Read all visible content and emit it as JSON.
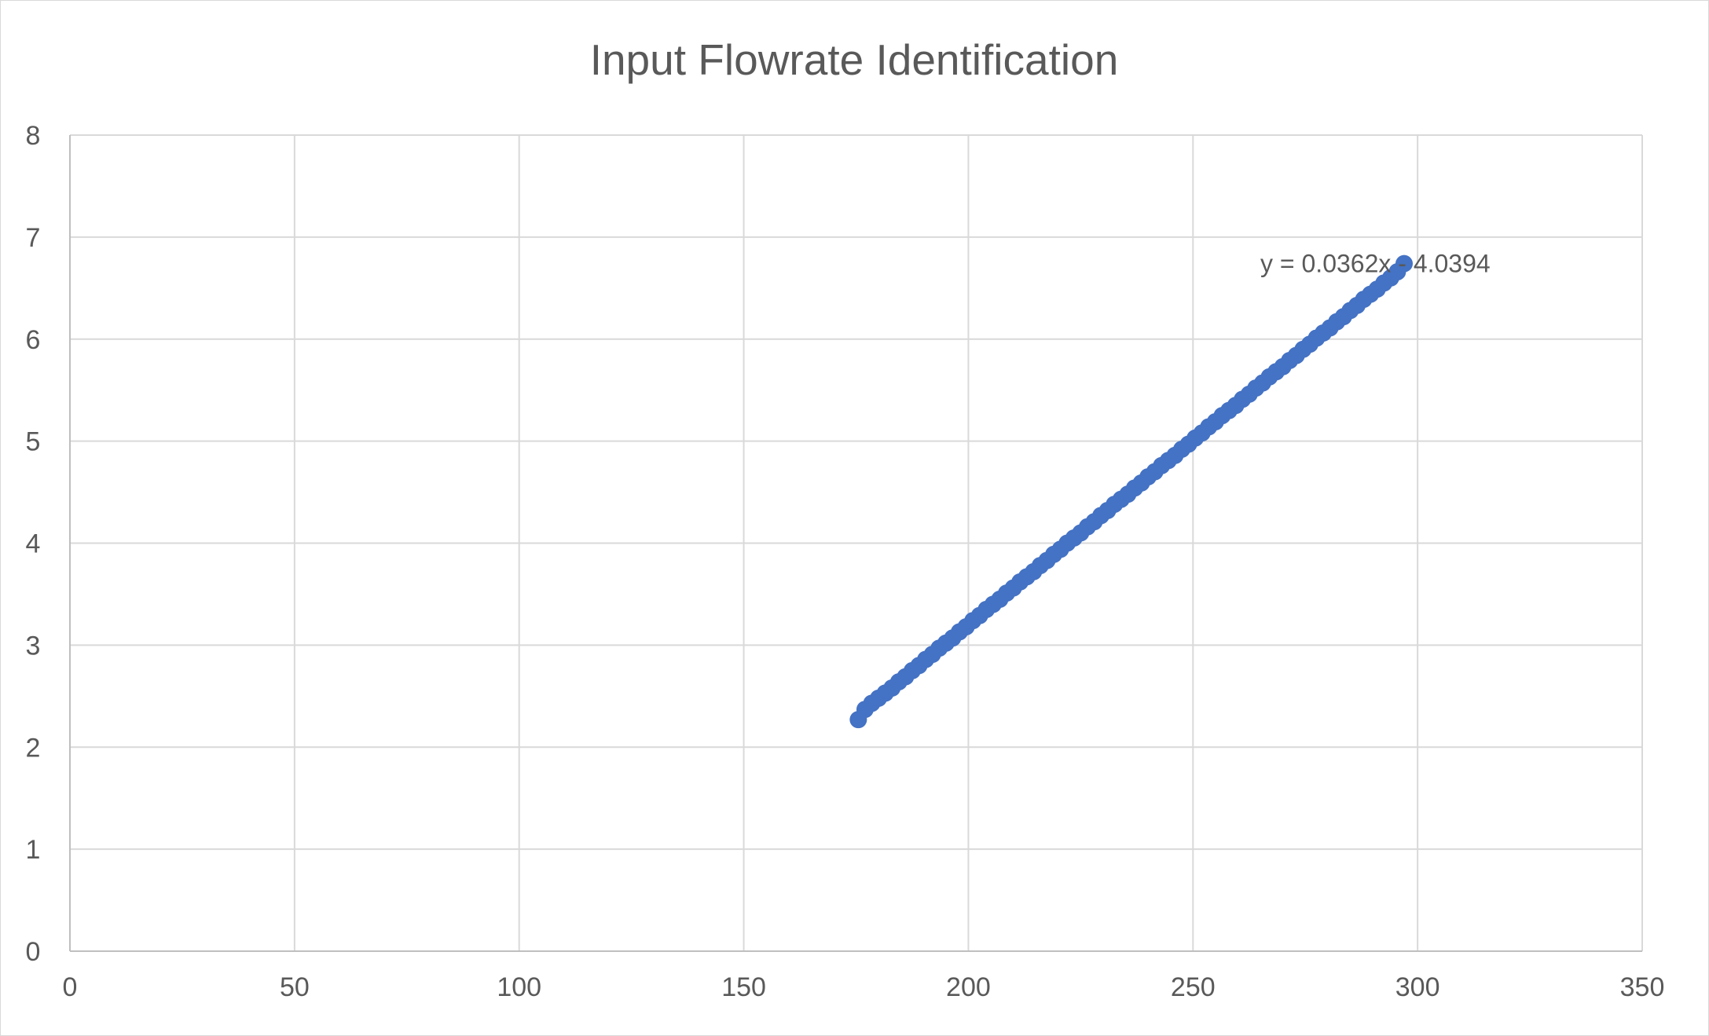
{
  "chart_data": {
    "type": "scatter",
    "title": "Input Flowrate Identification",
    "xlabel": "",
    "ylabel": "",
    "xlim": [
      0,
      350
    ],
    "ylim": [
      0,
      8
    ],
    "x_ticks": [
      "0",
      "50",
      "100",
      "150",
      "200",
      "250",
      "300",
      "350"
    ],
    "y_ticks": [
      "0",
      "1",
      "2",
      "3",
      "4",
      "5",
      "6",
      "7",
      "8"
    ],
    "grid": true,
    "legend": "none",
    "series": [
      {
        "color": "#4472c4",
        "points": [
          [
            175.5,
            2.27
          ],
          [
            177,
            2.37
          ],
          [
            178.5,
            2.43
          ],
          [
            180,
            2.48
          ],
          [
            181.5,
            2.53
          ],
          [
            183,
            2.58
          ],
          [
            184.5,
            2.64
          ],
          [
            186,
            2.69
          ],
          [
            187.5,
            2.75
          ],
          [
            189,
            2.8
          ],
          [
            190.5,
            2.86
          ],
          [
            192,
            2.91
          ],
          [
            193.5,
            2.97
          ],
          [
            195,
            3.02
          ],
          [
            196.5,
            3.07
          ],
          [
            198,
            3.13
          ],
          [
            199.5,
            3.18
          ],
          [
            201,
            3.24
          ],
          [
            202.5,
            3.29
          ],
          [
            204,
            3.35
          ],
          [
            205.5,
            3.4
          ],
          [
            207,
            3.45
          ],
          [
            208.5,
            3.51
          ],
          [
            210,
            3.56
          ],
          [
            211.5,
            3.62
          ],
          [
            213,
            3.67
          ],
          [
            214.5,
            3.72
          ],
          [
            216,
            3.78
          ],
          [
            217.5,
            3.83
          ],
          [
            219,
            3.89
          ],
          [
            220.5,
            3.94
          ],
          [
            222,
            4.0
          ],
          [
            223.5,
            4.05
          ],
          [
            225,
            4.1
          ],
          [
            226.5,
            4.16
          ],
          [
            228,
            4.21
          ],
          [
            229.5,
            4.27
          ],
          [
            231,
            4.32
          ],
          [
            232.5,
            4.38
          ],
          [
            234,
            4.43
          ],
          [
            235.5,
            4.48
          ],
          [
            237,
            4.54
          ],
          [
            238.5,
            4.59
          ],
          [
            240,
            4.65
          ],
          [
            241.5,
            4.7
          ],
          [
            243,
            4.76
          ],
          [
            244.5,
            4.81
          ],
          [
            246,
            4.86
          ],
          [
            247.5,
            4.92
          ],
          [
            249,
            4.97
          ],
          [
            250.5,
            5.03
          ],
          [
            252,
            5.08
          ],
          [
            253.5,
            5.14
          ],
          [
            255,
            5.19
          ],
          [
            256.5,
            5.25
          ],
          [
            258,
            5.3
          ],
          [
            259.5,
            5.35
          ],
          [
            261,
            5.41
          ],
          [
            262.5,
            5.46
          ],
          [
            264,
            5.52
          ],
          [
            265.5,
            5.57
          ],
          [
            267,
            5.63
          ],
          [
            268.5,
            5.68
          ],
          [
            270,
            5.73
          ],
          [
            271.5,
            5.79
          ],
          [
            273,
            5.84
          ],
          [
            274.5,
            5.9
          ],
          [
            276,
            5.95
          ],
          [
            277.5,
            6.01
          ],
          [
            279,
            6.06
          ],
          [
            280.5,
            6.11
          ],
          [
            282,
            6.17
          ],
          [
            283.5,
            6.22
          ],
          [
            285,
            6.28
          ],
          [
            286.5,
            6.33
          ],
          [
            288,
            6.39
          ],
          [
            289.5,
            6.44
          ],
          [
            291,
            6.49
          ],
          [
            292.5,
            6.55
          ],
          [
            294,
            6.6
          ],
          [
            295.5,
            6.66
          ],
          [
            297,
            6.74
          ]
        ]
      }
    ],
    "trendline": {
      "slope": 0.0362,
      "intercept": -4.0394,
      "equation_label": "y = 0.0362x - 4.0394",
      "label_position": [
        265,
        6.75
      ]
    }
  }
}
